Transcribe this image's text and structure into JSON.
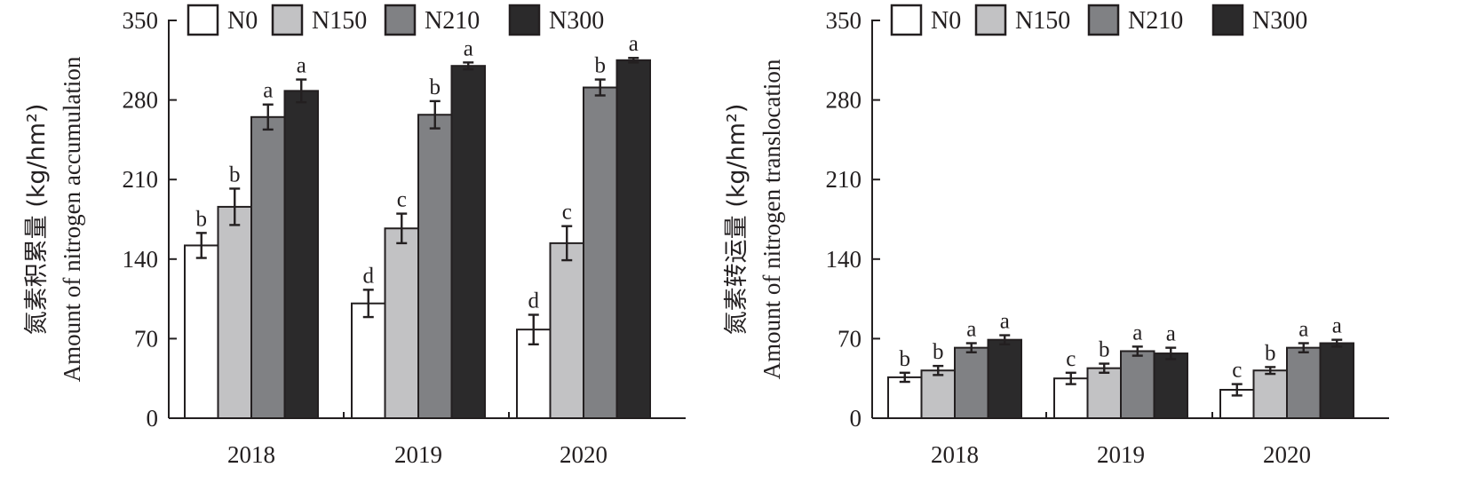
{
  "charts": [
    {
      "ylabel_cn": "氮素积累量 (kg/hm²)",
      "ylabel_en": "Amount of nitrogen accumulation",
      "yticks": [
        "0",
        "70",
        "140",
        "210",
        "280",
        "350"
      ],
      "categories": [
        "2018",
        "2019",
        "2020"
      ],
      "legend": [
        "N0",
        "N150",
        "N210",
        "N300"
      ]
    },
    {
      "ylabel_cn": "氮素转运量 (kg/hm²)",
      "ylabel_en": "Amount of nitrogen translocation",
      "yticks": [
        "0",
        "70",
        "140",
        "210",
        "280",
        "350"
      ],
      "categories": [
        "2018",
        "2019",
        "2020"
      ],
      "legend": [
        "N0",
        "N150",
        "N210",
        "N300"
      ]
    }
  ],
  "colors": {
    "N0": "#ffffff",
    "N150": "#c2c2c4",
    "N210": "#808184",
    "N300": "#2b2a2b",
    "stroke": "#231f20"
  },
  "chart_data": [
    {
      "type": "bar",
      "ylabel": "氮素积累量 (kg/hm²) Amount of nitrogen accumulation",
      "ylim": [
        0,
        350
      ],
      "categories": [
        "2018",
        "2019",
        "2020"
      ],
      "series": [
        {
          "name": "N0",
          "values": [
            152,
            101,
            78
          ],
          "errors": [
            11,
            12,
            13
          ],
          "labels": [
            "b",
            "d",
            "d"
          ]
        },
        {
          "name": "N150",
          "values": [
            186,
            167,
            154
          ],
          "errors": [
            16,
            13,
            15
          ],
          "labels": [
            "b",
            "c",
            "c"
          ]
        },
        {
          "name": "N210",
          "values": [
            265,
            267,
            291
          ],
          "errors": [
            11,
            12,
            7
          ],
          "labels": [
            "a",
            "b",
            "b"
          ]
        },
        {
          "name": "N300",
          "values": [
            288,
            310,
            315
          ],
          "errors": [
            10,
            3,
            2
          ],
          "labels": [
            "a",
            "a",
            "a"
          ]
        }
      ]
    },
    {
      "type": "bar",
      "ylabel": "氮素转运量 (kg/hm²) Amount of nitrogen translocation",
      "ylim": [
        0,
        350
      ],
      "categories": [
        "2018",
        "2019",
        "2020"
      ],
      "series": [
        {
          "name": "N0",
          "values": [
            36,
            35,
            25
          ],
          "errors": [
            4,
            5,
            5
          ],
          "labels": [
            "b",
            "c",
            "c"
          ]
        },
        {
          "name": "N150",
          "values": [
            42,
            44,
            42
          ],
          "errors": [
            4,
            4,
            3
          ],
          "labels": [
            "b",
            "b",
            "b"
          ]
        },
        {
          "name": "N210",
          "values": [
            62,
            59,
            62
          ],
          "errors": [
            4,
            4,
            4
          ],
          "labels": [
            "a",
            "a",
            "a"
          ]
        },
        {
          "name": "N300",
          "values": [
            69,
            57,
            66
          ],
          "errors": [
            4,
            5,
            3
          ],
          "labels": [
            "a",
            "a",
            "a"
          ]
        }
      ]
    }
  ]
}
